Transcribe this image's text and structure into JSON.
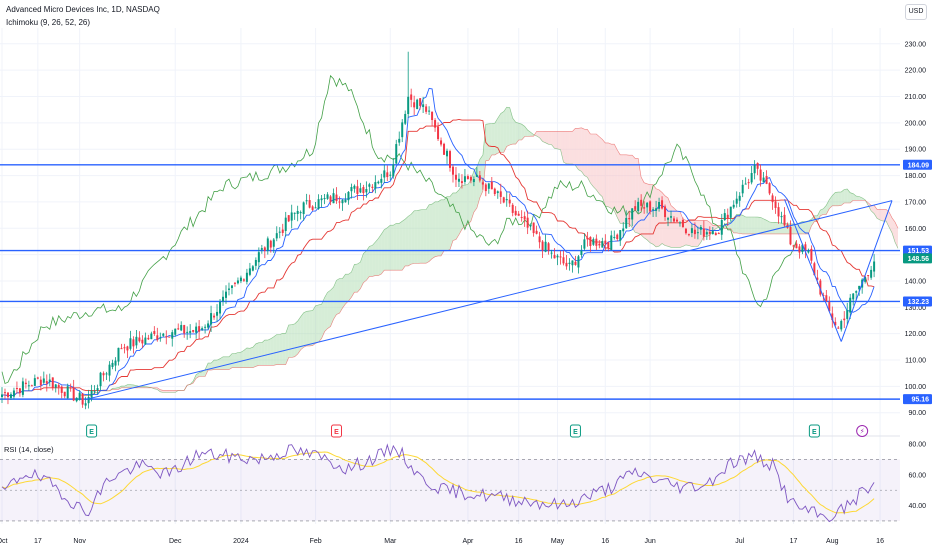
{
  "header": {
    "title": "Advanced Micro Devices Inc, 1D, NASDAQ",
    "indicator": "Ichimoku (9, 26, 52, 26)",
    "rsi_label": "RSI (14, close)",
    "currency": "USD"
  },
  "colors": {
    "up": "#089981",
    "down": "#f23645",
    "hline": "#2962ff",
    "tenkan": "#2962ff",
    "kijun": "#e53935",
    "lagging": "#43a047",
    "cloud_bull": "#a5d6a7",
    "cloud_bear": "#f7b7bb",
    "rsi": "#7e57c2",
    "rsi_ma": "#fdd835",
    "rsi_band": "#7e57c2",
    "grid": "#f0f3fa"
  },
  "chart_data": {
    "type": "candlestick",
    "ylim": [
      88,
      236
    ],
    "ytick_labels": [
      "90.00",
      "100.00",
      "110.00",
      "120.00",
      "130.00",
      "140.00",
      "150.00",
      "160.00",
      "170.00",
      "180.00",
      "190.00",
      "200.00",
      "210.00",
      "220.00",
      "230.00"
    ],
    "ytick_values": [
      90,
      100,
      110,
      120,
      130,
      140,
      150,
      160,
      170,
      180,
      190,
      200,
      210,
      220,
      230
    ],
    "xtick_labels": [
      "Oct",
      "17",
      "Nov",
      "Dec",
      "2024",
      "Feb",
      "Mar",
      "Apr",
      "16",
      "May",
      "16",
      "Jun",
      "Jul",
      "17",
      "Aug",
      "16"
    ],
    "xtick_days": [
      0,
      12,
      26,
      58,
      80,
      105,
      130,
      156,
      173,
      186,
      202,
      217,
      247,
      265,
      278,
      294
    ],
    "price_levels": [
      {
        "label": "184.09",
        "value": 184.09
      },
      {
        "label": "151.53",
        "value": 151.53
      },
      {
        "label": "132.23",
        "value": 132.23
      },
      {
        "label": "95.16",
        "value": 95.16
      }
    ],
    "last_price": {
      "label": "148.56",
      "value": 148.56
    },
    "key_points": [
      {
        "day": 0,
        "close": 97
      },
      {
        "day": 14,
        "close": 103
      },
      {
        "day": 28,
        "close": 94
      },
      {
        "day": 40,
        "close": 115
      },
      {
        "day": 56,
        "close": 121
      },
      {
        "day": 66,
        "close": 121
      },
      {
        "day": 76,
        "close": 135
      },
      {
        "day": 86,
        "close": 150
      },
      {
        "day": 100,
        "close": 168
      },
      {
        "day": 112,
        "close": 172
      },
      {
        "day": 122,
        "close": 176
      },
      {
        "day": 130,
        "close": 182
      },
      {
        "day": 136,
        "close": 210
      },
      {
        "day": 142,
        "close": 205
      },
      {
        "day": 146,
        "close": 195
      },
      {
        "day": 152,
        "close": 180
      },
      {
        "day": 160,
        "close": 178
      },
      {
        "day": 168,
        "close": 170
      },
      {
        "day": 176,
        "close": 160
      },
      {
        "day": 184,
        "close": 150
      },
      {
        "day": 190,
        "close": 145
      },
      {
        "day": 196,
        "close": 155
      },
      {
        "day": 204,
        "close": 155
      },
      {
        "day": 212,
        "close": 168
      },
      {
        "day": 220,
        "close": 168
      },
      {
        "day": 226,
        "close": 163
      },
      {
        "day": 232,
        "close": 158
      },
      {
        "day": 240,
        "close": 160
      },
      {
        "day": 246,
        "close": 172
      },
      {
        "day": 252,
        "close": 182
      },
      {
        "day": 258,
        "close": 172
      },
      {
        "day": 264,
        "close": 155
      },
      {
        "day": 270,
        "close": 150
      },
      {
        "day": 276,
        "close": 130
      },
      {
        "day": 280,
        "close": 122
      },
      {
        "day": 284,
        "close": 132
      },
      {
        "day": 292,
        "close": 148
      }
    ],
    "trendlines": [
      {
        "from": {
          "day": 28,
          "value": 95
        },
        "to": {
          "day": 298,
          "value": 170.5
        }
      },
      {
        "from": {
          "day": 262,
          "value": 171
        },
        "to": {
          "day": 281,
          "value": 117
        }
      },
      {
        "from": {
          "day": 281,
          "value": 117
        },
        "to": {
          "day": 298,
          "value": 170.5
        }
      }
    ],
    "rsi": {
      "ylim": [
        28,
        82
      ],
      "ytick_labels": [
        "40.00",
        "60.00",
        "80.00"
      ],
      "ytick_values": [
        40,
        60,
        80
      ],
      "band": [
        30,
        70
      ],
      "mid": 50,
      "key_points": [
        {
          "day": 0,
          "value": 48
        },
        {
          "day": 8,
          "value": 62
        },
        {
          "day": 18,
          "value": 52
        },
        {
          "day": 28,
          "value": 35
        },
        {
          "day": 36,
          "value": 58
        },
        {
          "day": 46,
          "value": 66
        },
        {
          "day": 56,
          "value": 60
        },
        {
          "day": 66,
          "value": 74
        },
        {
          "day": 76,
          "value": 72
        },
        {
          "day": 86,
          "value": 70
        },
        {
          "day": 96,
          "value": 76
        },
        {
          "day": 106,
          "value": 72
        },
        {
          "day": 116,
          "value": 64
        },
        {
          "day": 126,
          "value": 72
        },
        {
          "day": 132,
          "value": 78
        },
        {
          "day": 140,
          "value": 58
        },
        {
          "day": 148,
          "value": 50
        },
        {
          "day": 156,
          "value": 48
        },
        {
          "day": 164,
          "value": 46
        },
        {
          "day": 172,
          "value": 44
        },
        {
          "day": 180,
          "value": 42
        },
        {
          "day": 188,
          "value": 40
        },
        {
          "day": 196,
          "value": 46
        },
        {
          "day": 204,
          "value": 52
        },
        {
          "day": 212,
          "value": 62
        },
        {
          "day": 220,
          "value": 56
        },
        {
          "day": 228,
          "value": 52
        },
        {
          "day": 236,
          "value": 54
        },
        {
          "day": 244,
          "value": 68
        },
        {
          "day": 252,
          "value": 72
        },
        {
          "day": 258,
          "value": 66
        },
        {
          "day": 264,
          "value": 42
        },
        {
          "day": 270,
          "value": 36
        },
        {
          "day": 276,
          "value": 32
        },
        {
          "day": 282,
          "value": 38
        },
        {
          "day": 290,
          "value": 52
        }
      ]
    },
    "event_markers": [
      {
        "day": 30,
        "label": "E",
        "kind": "earnings"
      },
      {
        "day": 112,
        "label": "E",
        "kind": "earnings-down"
      },
      {
        "day": 192,
        "label": "E",
        "kind": "earnings"
      },
      {
        "day": 272,
        "label": "E",
        "kind": "earnings"
      },
      {
        "day": 288,
        "label": "⚡",
        "kind": "split"
      }
    ]
  }
}
